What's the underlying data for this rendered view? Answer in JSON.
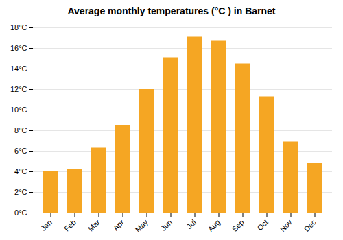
{
  "chart_data": {
    "type": "bar",
    "title": "Average monthly temperatures (°C ) in Barnet",
    "categories": [
      "Jan",
      "Feb",
      "Mar",
      "Apr",
      "May",
      "Jun",
      "Jul",
      "Aug",
      "Sep",
      "Oct",
      "Nov",
      "Dec"
    ],
    "values": [
      4.0,
      4.2,
      6.3,
      8.5,
      12.0,
      15.1,
      17.1,
      16.7,
      14.5,
      11.3,
      6.9,
      4.8
    ],
    "color": "#F5A623",
    "ylim": [
      0,
      18
    ],
    "yticks": [
      {
        "value": 0,
        "label": "0°C"
      },
      {
        "value": 2,
        "label": "2°C"
      },
      {
        "value": 4,
        "label": "4°C"
      },
      {
        "value": 6,
        "label": "6°C"
      },
      {
        "value": 8,
        "label": "8°C"
      },
      {
        "value": 10,
        "label": "10°C"
      },
      {
        "value": 12,
        "label": "12°C"
      },
      {
        "value": 14,
        "label": "14°C"
      },
      {
        "value": 16,
        "label": "16°C"
      },
      {
        "value": 18,
        "label": "18°C"
      }
    ],
    "grid": true
  }
}
